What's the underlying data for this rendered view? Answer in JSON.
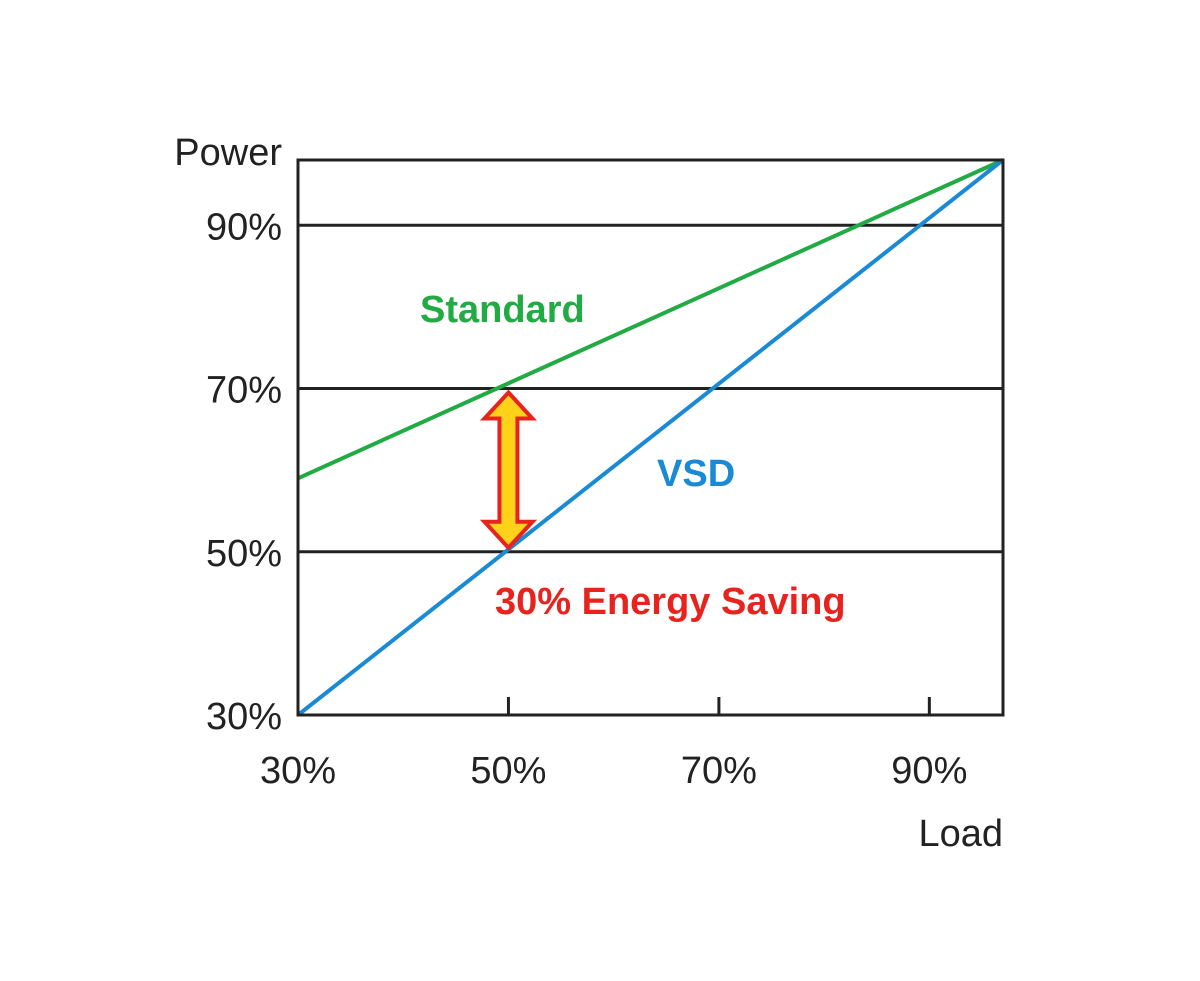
{
  "chart_data": {
    "type": "line",
    "xlabel": "Load",
    "ylabel": "Power",
    "xlim": [
      30,
      97
    ],
    "ylim": [
      30,
      98
    ],
    "x_ticks": [
      "30%",
      "50%",
      "70%",
      "90%"
    ],
    "x_tick_values": [
      30,
      50,
      70,
      90
    ],
    "y_ticks": [
      "30%",
      "50%",
      "70%",
      "90%"
    ],
    "y_tick_values": [
      30,
      50,
      70,
      90
    ],
    "grid": "horizontal",
    "series": [
      {
        "name": "Standard",
        "color": "#22aa44",
        "x": [
          30,
          97
        ],
        "y": [
          59,
          98
        ]
      },
      {
        "name": "VSD",
        "color": "#1a8ad4",
        "x": [
          30,
          97
        ],
        "y": [
          30,
          98
        ]
      }
    ],
    "annotations": [
      {
        "text": "30% Energy Saving",
        "color": "#e8231e",
        "arrow_x": 50,
        "arrow_y": [
          50,
          70
        ],
        "arrow_fill": "#ffd21a",
        "arrow_stroke": "#e8231e"
      }
    ]
  }
}
